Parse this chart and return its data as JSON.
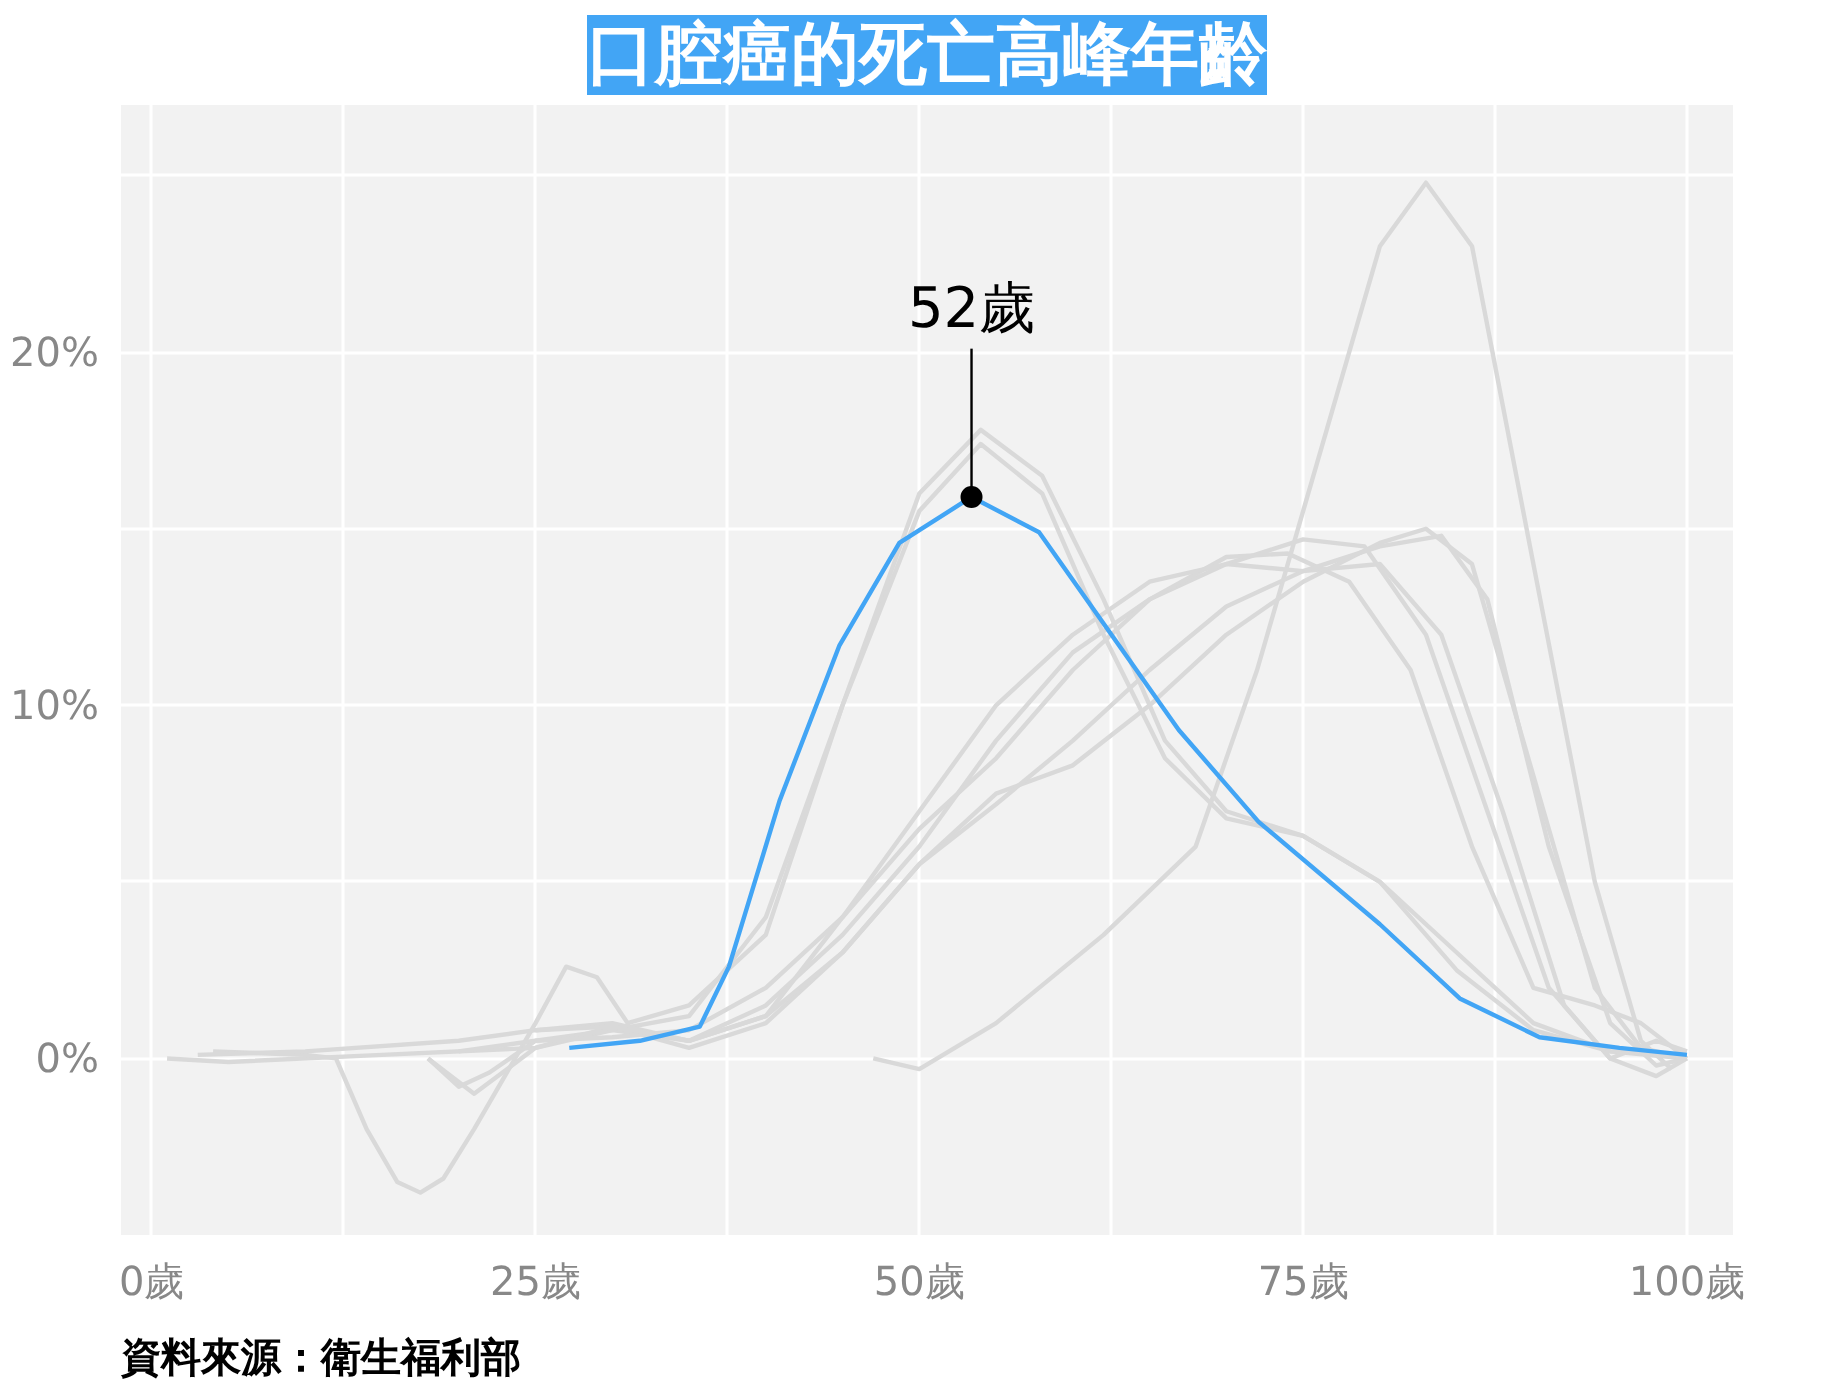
{
  "chart_data": {
    "type": "line",
    "title": "口腔癌的死亡高峰年齡",
    "xlim": [
      -2,
      103
    ],
    "ylim": [
      -5,
      27
    ],
    "xticks": [
      {
        "value": 0,
        "label": "0歲"
      },
      {
        "value": 12.5,
        "label": null
      },
      {
        "value": 25,
        "label": "25歲"
      },
      {
        "value": 37.5,
        "label": null
      },
      {
        "value": 50,
        "label": "50歲"
      },
      {
        "value": 62.5,
        "label": null
      },
      {
        "value": 75,
        "label": "75歲"
      },
      {
        "value": 87.5,
        "label": null
      },
      {
        "value": 100,
        "label": "100歲"
      }
    ],
    "yticks": [
      {
        "value": 0,
        "label": "0%"
      },
      {
        "value": 5,
        "label": null
      },
      {
        "value": 10,
        "label": "10%"
      },
      {
        "value": 15,
        "label": null
      },
      {
        "value": 20,
        "label": "20%"
      },
      {
        "value": 25,
        "label": null
      }
    ],
    "grid": true,
    "line_style": "solid",
    "series": [
      {
        "color": "#d9d9d9",
        "x": [
          47,
          50,
          55,
          62,
          68,
          72,
          76,
          80,
          83,
          86,
          90,
          94,
          97,
          99
        ],
        "values": [
          0,
          -0.3,
          1,
          3.5,
          6,
          11,
          17,
          23,
          24.8,
          23,
          14,
          5,
          0.5,
          -0.3
        ]
      },
      {
        "color": "#d9d9d9",
        "x": [
          1,
          5,
          15,
          25,
          30,
          35,
          40,
          45,
          50,
          54,
          58,
          62,
          66,
          70,
          75,
          80,
          85,
          90,
          95,
          100
        ],
        "values": [
          0,
          -0.1,
          0.1,
          0.3,
          0.8,
          1.2,
          4,
          10,
          16,
          17.8,
          16.5,
          13,
          9,
          7,
          6.3,
          5,
          3,
          1,
          0.2,
          0
        ]
      },
      {
        "color": "#d9d9d9",
        "x": [
          4,
          10,
          12,
          14,
          16,
          17.5,
          19,
          21,
          23,
          25,
          27,
          29,
          31,
          35,
          40,
          45,
          50,
          54,
          58,
          62,
          66,
          70,
          75,
          80,
          85,
          90,
          95,
          100
        ],
        "values": [
          0.2,
          0.1,
          0,
          -2,
          -3.5,
          -3.8,
          -3.4,
          -2,
          -0.5,
          1,
          2.6,
          2.3,
          1,
          1.5,
          3.5,
          10,
          15.5,
          17.4,
          16,
          12,
          8.5,
          6.8,
          6.3,
          5,
          2.5,
          0.8,
          0.2,
          0.1
        ]
      },
      {
        "color": "#d9d9d9",
        "x": [
          18,
          20,
          22,
          25,
          30,
          35,
          40,
          45,
          50,
          55,
          60,
          65,
          70,
          75,
          79,
          83,
          87,
          91,
          95,
          98,
          100
        ],
        "values": [
          0,
          -0.8,
          -0.4,
          0.5,
          0.8,
          0.5,
          1.5,
          3.5,
          6,
          9,
          11.5,
          13,
          14,
          14.7,
          14.5,
          12,
          7,
          2,
          0,
          -0.5,
          0
        ]
      },
      {
        "color": "#d9d9d9",
        "x": [
          18,
          21,
          25,
          30,
          35,
          40,
          45,
          50,
          55,
          60,
          65,
          70,
          75,
          80,
          83,
          86,
          90,
          94,
          97,
          100
        ],
        "values": [
          0,
          -1,
          0.3,
          0.9,
          0.3,
          1,
          3,
          5.5,
          7.5,
          8.3,
          10,
          12,
          13.5,
          14.6,
          15,
          14,
          8,
          2,
          0.3,
          0
        ]
      },
      {
        "color": "#d9d9d9",
        "x": [
          25,
          30,
          35,
          40,
          45,
          50,
          55,
          60,
          65,
          70,
          75,
          80,
          84,
          88,
          92,
          95,
          98,
          100
        ],
        "values": [
          0.8,
          1,
          0.5,
          1.2,
          3,
          5.5,
          7.2,
          9,
          11,
          12.8,
          13.8,
          14,
          12,
          7,
          1.5,
          0,
          0.5,
          0.2
        ]
      },
      {
        "color": "#d9d9d9",
        "x": [
          20,
          25,
          30,
          35,
          40,
          45,
          50,
          55,
          60,
          65,
          70,
          74,
          78,
          82,
          86,
          90,
          94,
          97,
          100
        ],
        "values": [
          0.2,
          0.5,
          0.6,
          0.8,
          2,
          4,
          6.5,
          8.5,
          11,
          13,
          14.2,
          14.3,
          13.5,
          11,
          6,
          2,
          1.5,
          1,
          0
        ]
      },
      {
        "color": "#d9d9d9",
        "x": [
          3,
          10,
          20,
          25,
          30,
          35,
          40,
          45,
          50,
          55,
          60,
          65,
          70,
          75,
          80,
          84,
          87,
          91,
          95,
          98,
          100
        ],
        "values": [
          0.1,
          0.2,
          0.5,
          0.8,
          0.9,
          0.5,
          1.2,
          4,
          7,
          10,
          12,
          13.5,
          14,
          13.8,
          14.5,
          14.8,
          13,
          6,
          1,
          -0.2,
          0
        ]
      },
      {
        "color": "#42a5f5",
        "x": [
          27.2,
          31.8,
          35.7,
          37.6,
          40.9,
          44.8,
          48.7,
          53.4,
          57.8,
          61.7,
          66.9,
          72.1,
          80,
          85.2,
          90.4,
          95.6,
          100
        ],
        "values": [
          0.3,
          0.5,
          0.9,
          2.6,
          7.3,
          11.7,
          14.6,
          15.9,
          14.9,
          12.5,
          9.3,
          6.7,
          3.8,
          1.7,
          0.6,
          0.3,
          0.1
        ]
      }
    ],
    "annotations": [
      {
        "text": "52歲",
        "x": 53.4,
        "y": 15.9
      },
      "資料來源：衛生福利部"
    ]
  }
}
